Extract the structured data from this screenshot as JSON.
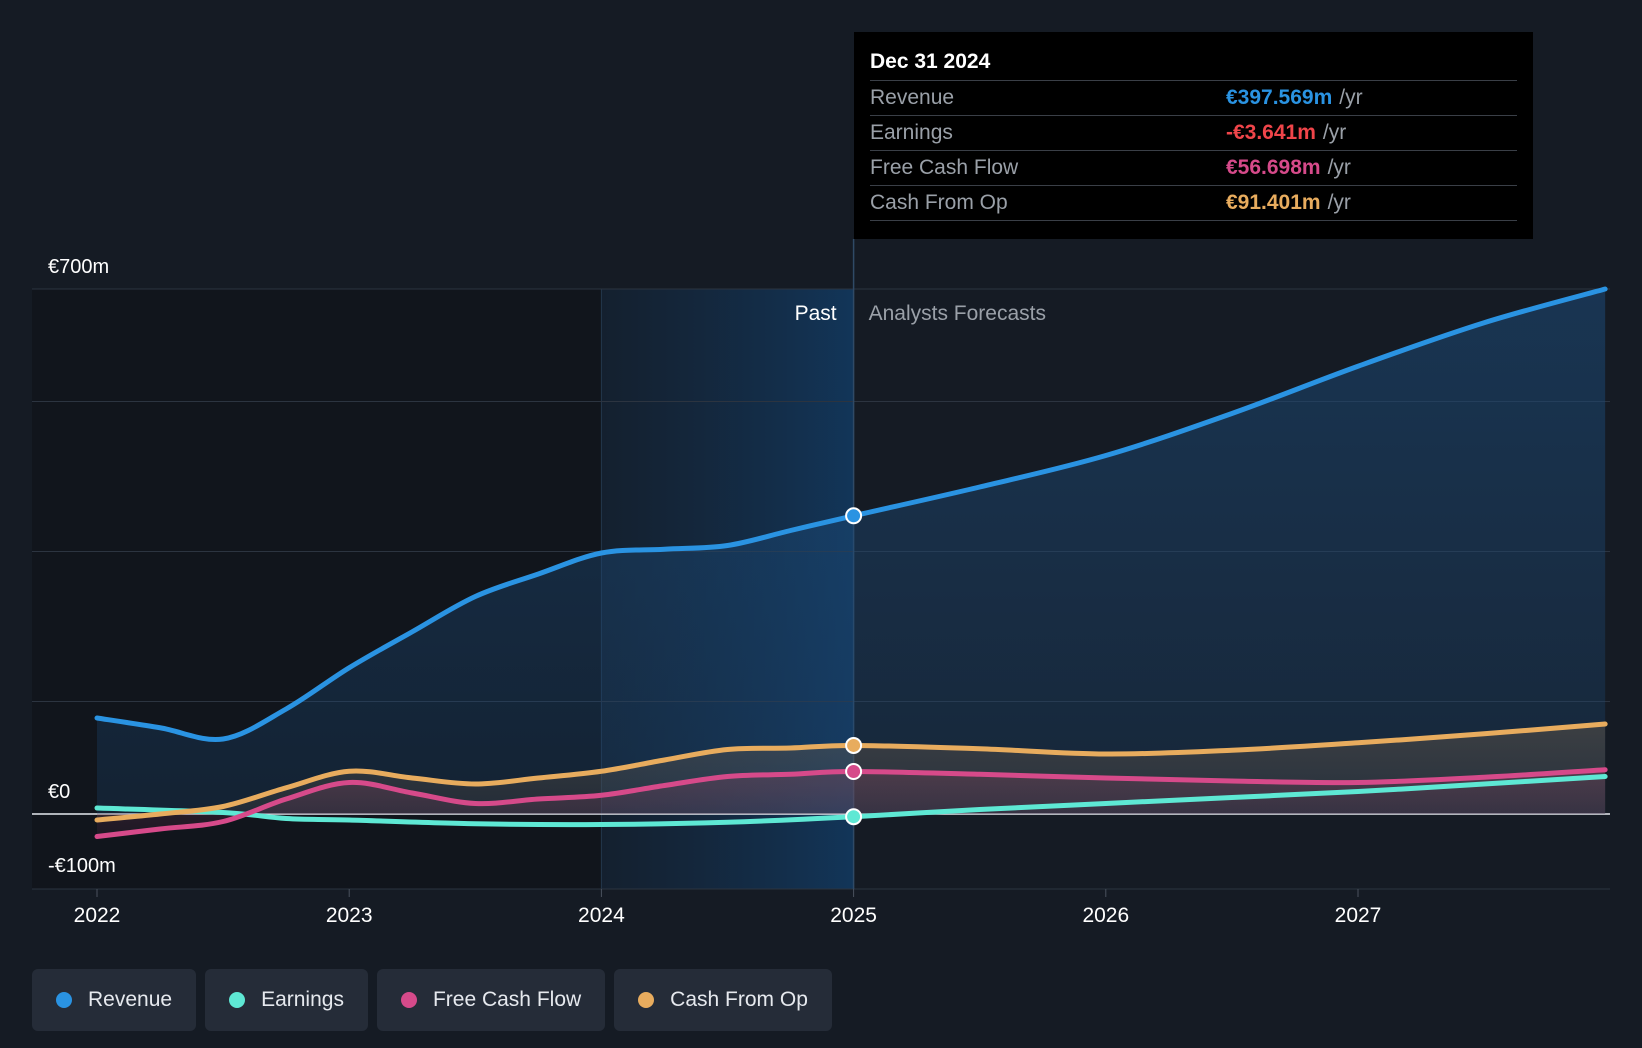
{
  "chart_data": {
    "type": "line",
    "title": "",
    "x_ticks": [
      "2022",
      "2023",
      "2024",
      "2025",
      "2026",
      "2027"
    ],
    "y_tick_labels": [
      "€700m",
      "€0",
      "-€100m"
    ],
    "ylim": [
      -100,
      700
    ],
    "xlim": [
      2021.75,
      2027.98
    ],
    "region_labels": {
      "past": "Past",
      "forecast": "Analysts Forecasts"
    },
    "divider_x": 2025.0,
    "highlight_start_x": 2024.0,
    "series": [
      {
        "name": "Revenue",
        "color": "#2a93e2",
        "x": [
          2022.0,
          2022.25,
          2022.5,
          2022.75,
          2023.0,
          2023.25,
          2023.5,
          2023.75,
          2024.0,
          2024.25,
          2024.5,
          2024.75,
          2025.0,
          2025.5,
          2026.0,
          2026.5,
          2027.0,
          2027.5,
          2027.98
        ],
        "values": [
          128,
          115,
          100,
          140,
          195,
          243,
          290,
          320,
          348,
          353,
          358,
          378,
          397.6,
          436,
          478,
          534,
          597,
          655,
          700
        ]
      },
      {
        "name": "Earnings",
        "color": "#5ee8d4",
        "x": [
          2022.0,
          2022.5,
          2022.75,
          2023.0,
          2023.5,
          2024.0,
          2024.5,
          2025.0,
          2025.5,
          2026.0,
          2026.5,
          2027.0,
          2027.5,
          2027.98
        ],
        "values": [
          8,
          2,
          -6,
          -8,
          -13,
          -14,
          -11,
          -3.6,
          6,
          14,
          22,
          30,
          40,
          50
        ]
      },
      {
        "name": "Free Cash Flow",
        "color": "#d64a8a",
        "x": [
          2022.0,
          2022.25,
          2022.5,
          2022.75,
          2023.0,
          2023.25,
          2023.5,
          2023.75,
          2024.0,
          2024.25,
          2024.5,
          2024.75,
          2025.0,
          2025.5,
          2026.0,
          2026.5,
          2027.0,
          2027.5,
          2027.98
        ],
        "values": [
          -30,
          -20,
          -10,
          20,
          42,
          28,
          14,
          20,
          25,
          38,
          50,
          53,
          56.7,
          53,
          48,
          44,
          42,
          49,
          59
        ]
      },
      {
        "name": "Cash From Op",
        "color": "#e8ac5e",
        "x": [
          2022.0,
          2022.25,
          2022.5,
          2022.75,
          2023.0,
          2023.25,
          2023.5,
          2023.75,
          2024.0,
          2024.25,
          2024.5,
          2024.75,
          2025.0,
          2025.5,
          2026.0,
          2026.5,
          2027.0,
          2027.5,
          2027.98
        ],
        "values": [
          -8,
          0,
          10,
          35,
          57,
          48,
          40,
          48,
          57,
          72,
          86,
          88,
          91.4,
          87,
          80,
          85,
          95,
          107,
          120
        ]
      }
    ],
    "tooltip": {
      "date": "Dec 31 2024",
      "rows": [
        {
          "label": "Revenue",
          "value": "€397.569m",
          "unit": "/yr",
          "color": "#2a93e2"
        },
        {
          "label": "Earnings",
          "value": "-€3.641m",
          "unit": "/yr",
          "color": "#f0454a"
        },
        {
          "label": "Free Cash Flow",
          "value": "€56.698m",
          "unit": "/yr",
          "color": "#d64a8a"
        },
        {
          "label": "Cash From Op",
          "value": "€91.401m",
          "unit": "/yr",
          "color": "#e8ac5e"
        }
      ]
    },
    "legend": [
      {
        "label": "Revenue",
        "color": "#2a93e2"
      },
      {
        "label": "Earnings",
        "color": "#5ee8d4"
      },
      {
        "label": "Free Cash Flow",
        "color": "#d64a8a"
      },
      {
        "label": "Cash From Op",
        "color": "#e8ac5e"
      }
    ]
  }
}
